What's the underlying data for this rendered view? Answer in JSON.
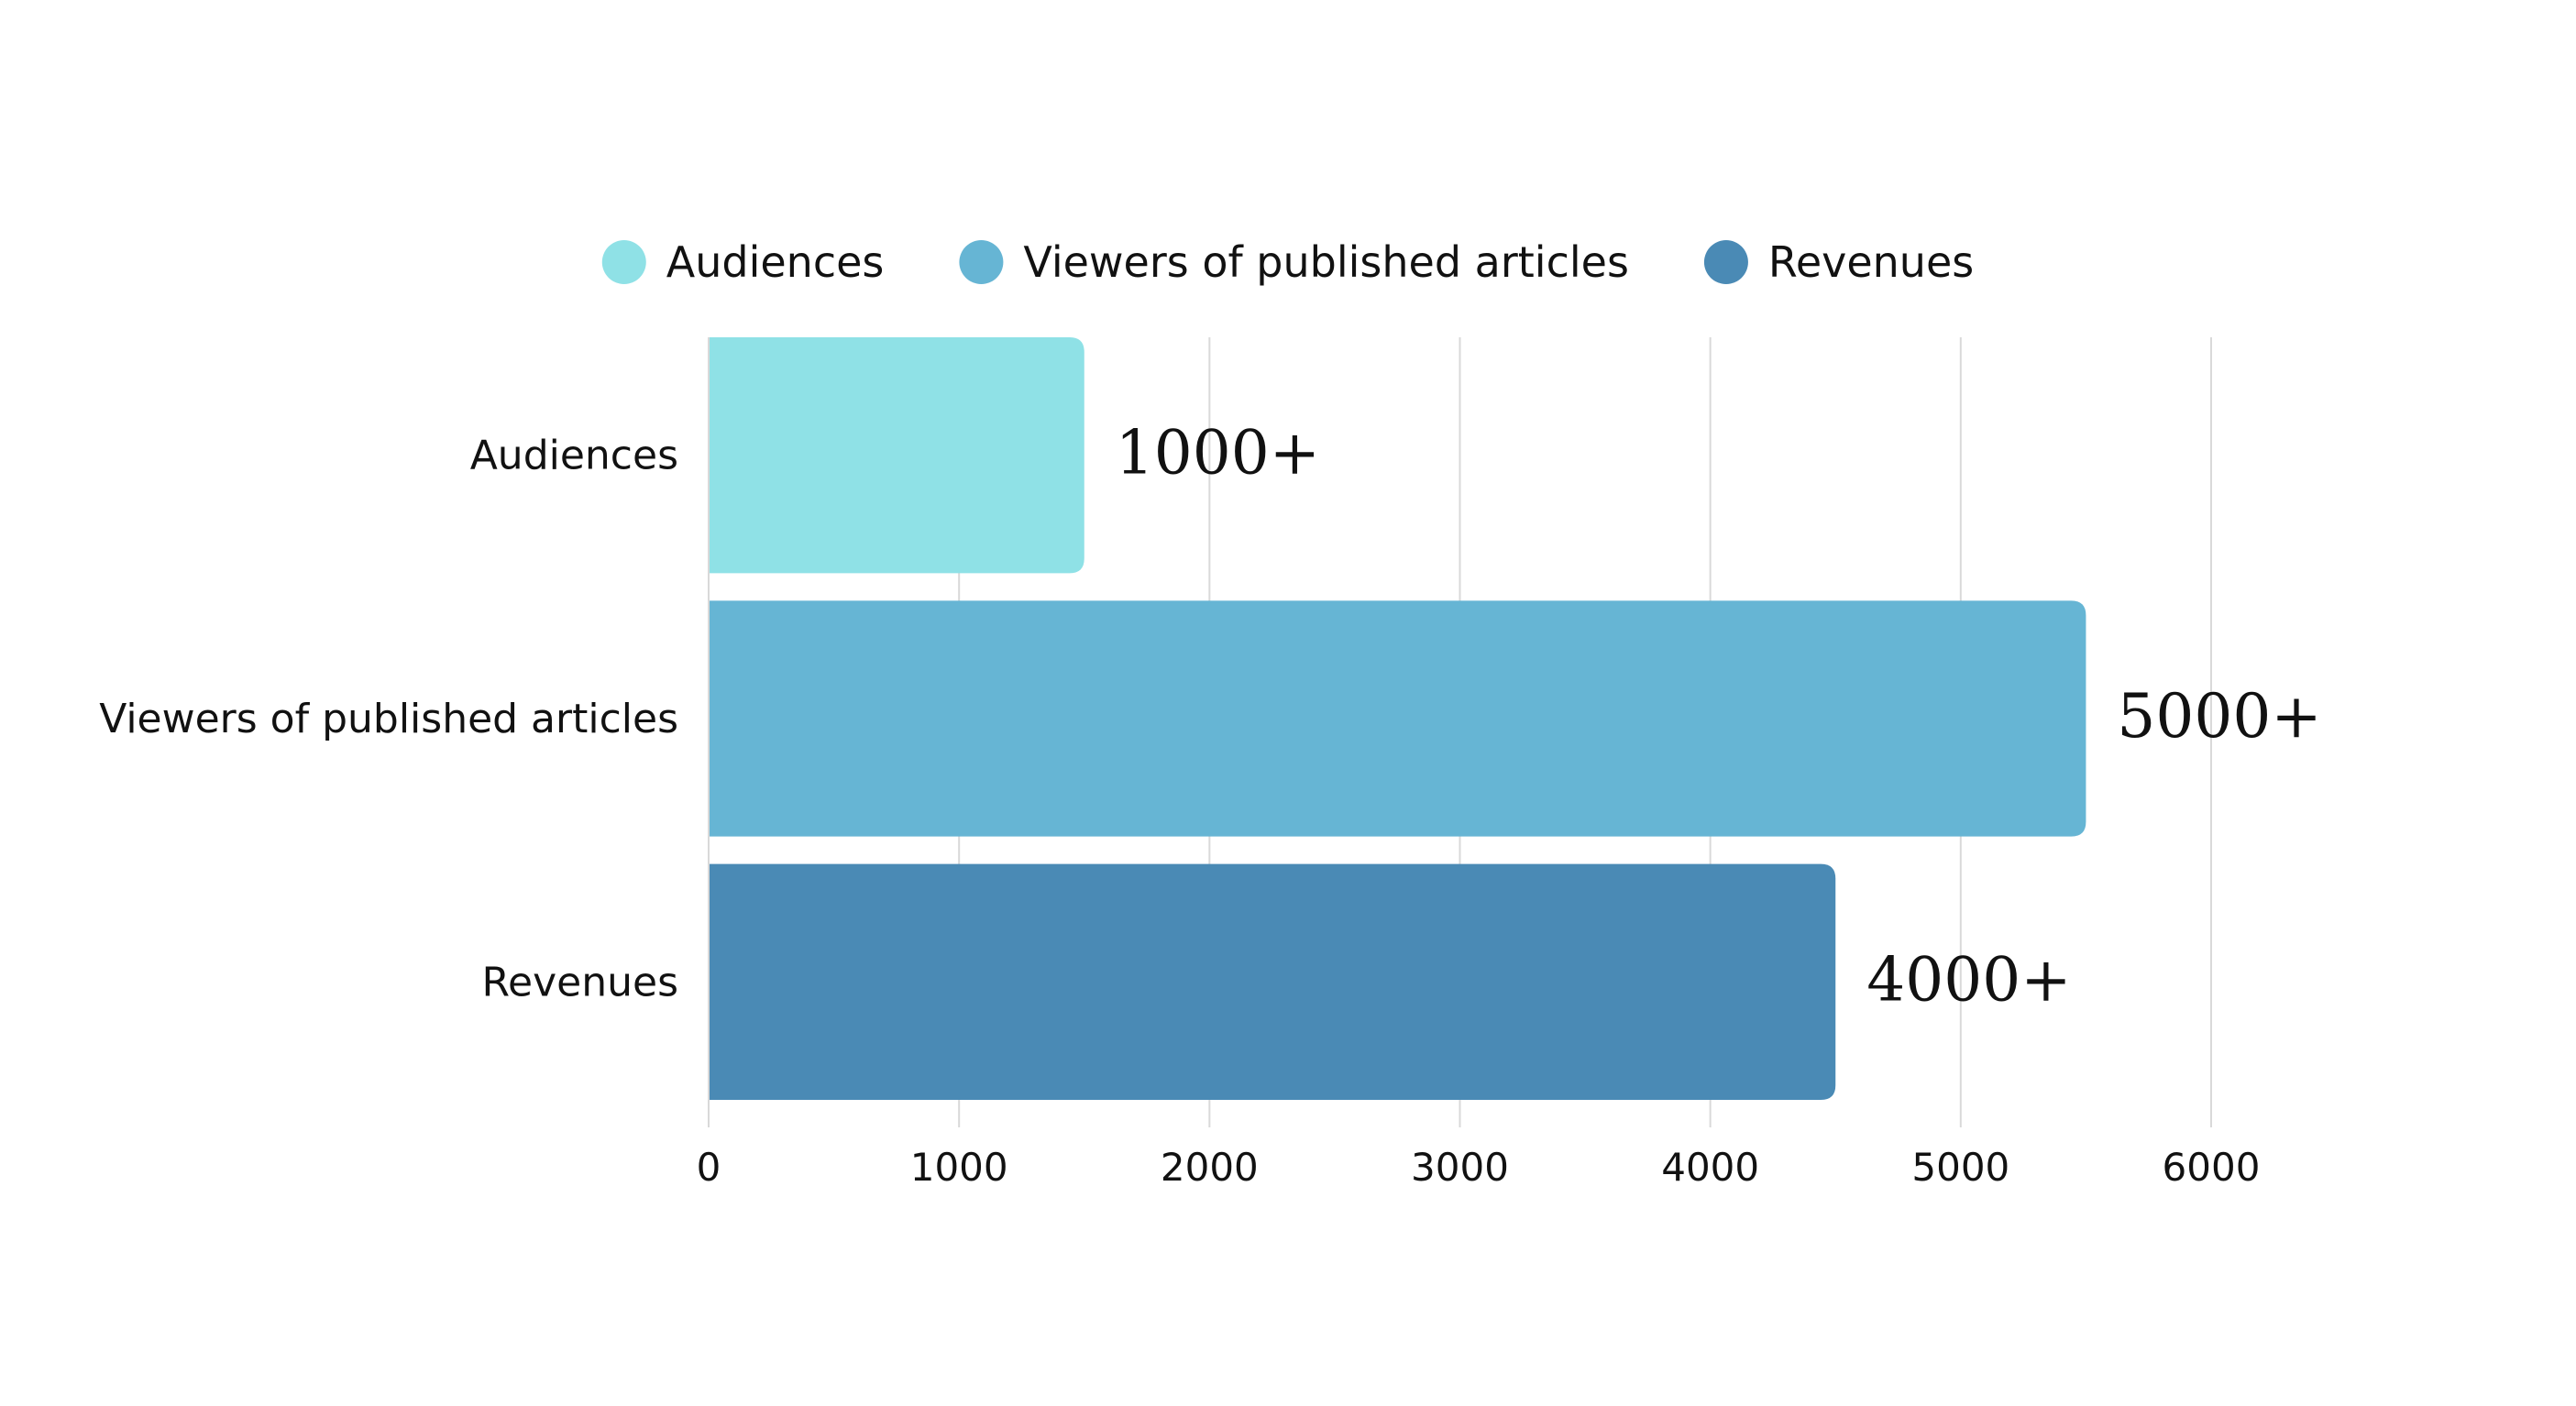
{
  "chart_data": {
    "type": "bar",
    "orientation": "horizontal",
    "categories": [
      "Audiences",
      "Viewers of published articles",
      "Revenues"
    ],
    "values": [
      1500,
      5500,
      4500
    ],
    "data_labels": [
      "1000+",
      "5000+",
      "4000+"
    ],
    "colors": [
      "#8FE1E6",
      "#66B5D4",
      "#4A8AB5"
    ],
    "xlim": [
      0,
      6000
    ],
    "xticks": [
      0,
      1000,
      2000,
      3000,
      4000,
      5000,
      6000
    ],
    "xtick_labels": [
      "0",
      "1000",
      "2000",
      "3000",
      "4000",
      "5000",
      "6000"
    ],
    "grid": "vertical",
    "legend": {
      "placement": "top-center",
      "entries": [
        "Audiences",
        "Viewers of published articles",
        "Revenues"
      ]
    },
    "title": "",
    "xlabel": "",
    "ylabel": ""
  }
}
